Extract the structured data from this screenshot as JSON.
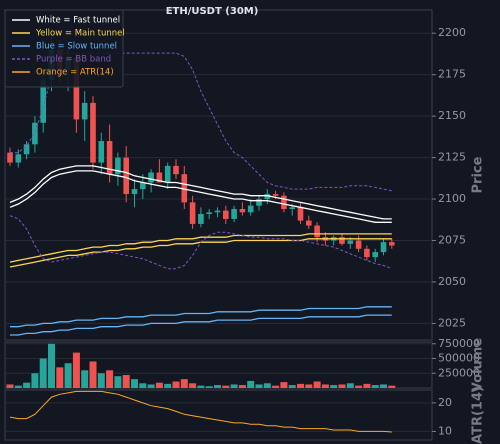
{
  "chart_data": [
    {
      "type": "candlestick",
      "title": "ETH/USDT (30M)",
      "y_label": "Price",
      "up_color": "#26a69a",
      "down_color": "#ef5350",
      "grid": true,
      "legend": "upper left",
      "ylim": [
        2015,
        2214
      ],
      "yticks": [
        2025,
        2050,
        2075,
        2100,
        2125,
        2150,
        2175,
        2200
      ],
      "open": [
        2128,
        2122,
        2127,
        2133,
        2146,
        2172,
        2190,
        2178,
        2185,
        2148,
        2158,
        2122,
        2135,
        2115,
        2125,
        2103,
        2106,
        2110,
        2116,
        2110,
        2120,
        2115,
        2098,
        2085,
        2091,
        2092,
        2093,
        2088,
        2094,
        2092,
        2096,
        2100,
        2103,
        2102,
        2094,
        2095,
        2087,
        2084,
        2077,
        2075,
        2077,
        2073,
        2075,
        2070,
        2065,
        2068,
        2074
      ],
      "high": [
        2131,
        2130,
        2135,
        2150,
        2178,
        2203,
        2196,
        2192,
        2188,
        2165,
        2162,
        2140,
        2145,
        2128,
        2132,
        2112,
        2115,
        2118,
        2124,
        2122,
        2124,
        2120,
        2102,
        2095,
        2094,
        2095,
        2096,
        2096,
        2098,
        2100,
        2102,
        2106,
        2105,
        2104,
        2097,
        2098,
        2090,
        2086,
        2080,
        2078,
        2079,
        2077,
        2078,
        2072,
        2070,
        2076,
        2076
      ],
      "low": [
        2120,
        2119,
        2124,
        2128,
        2140,
        2165,
        2170,
        2165,
        2140,
        2135,
        2118,
        2115,
        2110,
        2108,
        2098,
        2095,
        2100,
        2104,
        2110,
        2106,
        2112,
        2094,
        2082,
        2083,
        2088,
        2089,
        2085,
        2086,
        2090,
        2090,
        2093,
        2097,
        2100,
        2092,
        2090,
        2085,
        2082,
        2074,
        2072,
        2072,
        2072,
        2070,
        2068,
        2063,
        2062,
        2066,
        2070
      ],
      "close": [
        2122,
        2127,
        2133,
        2146,
        2172,
        2190,
        2178,
        2185,
        2148,
        2158,
        2122,
        2135,
        2115,
        2125,
        2103,
        2106,
        2110,
        2116,
        2110,
        2120,
        2115,
        2098,
        2085,
        2091,
        2092,
        2093,
        2088,
        2094,
        2092,
        2096,
        2100,
        2103,
        2102,
        2094,
        2095,
        2087,
        2084,
        2077,
        2075,
        2077,
        2073,
        2075,
        2070,
        2065,
        2068,
        2074,
        2072
      ],
      "series": [
        {
          "name": "White = Fast tunnel",
          "color": "#ffffff",
          "upper": [
            2098,
            2100,
            2103,
            2107,
            2112,
            2116,
            2118,
            2119,
            2120,
            2120,
            2120,
            2119,
            2118,
            2117,
            2116,
            2114,
            2113,
            2112,
            2111,
            2110,
            2110,
            2109,
            2108,
            2107,
            2106,
            2105,
            2104,
            2103,
            2103,
            2102,
            2102,
            2102,
            2101,
            2100,
            2099,
            2098,
            2097,
            2096,
            2095,
            2094,
            2093,
            2092,
            2091,
            2090,
            2089,
            2088,
            2088
          ],
          "lower": [
            2095,
            2097,
            2100,
            2104,
            2109,
            2113,
            2115,
            2116,
            2117,
            2117,
            2117,
            2116,
            2115,
            2114,
            2113,
            2111,
            2110,
            2109,
            2108,
            2107,
            2107,
            2106,
            2105,
            2104,
            2103,
            2102,
            2101,
            2100,
            2100,
            2099,
            2099,
            2099,
            2098,
            2097,
            2096,
            2095,
            2094,
            2093,
            2092,
            2091,
            2090,
            2089,
            2088,
            2087,
            2086,
            2086,
            2086
          ]
        },
        {
          "name": "Yellow = Main tunnel",
          "color": "#ffd54f",
          "upper": [
            2062,
            2063,
            2064,
            2065,
            2066,
            2067,
            2068,
            2069,
            2069,
            2070,
            2071,
            2071,
            2072,
            2072,
            2073,
            2073,
            2074,
            2074,
            2075,
            2075,
            2076,
            2076,
            2076,
            2077,
            2077,
            2077,
            2077,
            2078,
            2078,
            2078,
            2078,
            2078,
            2078,
            2078,
            2078,
            2078,
            2079,
            2079,
            2079,
            2079,
            2079,
            2079,
            2079,
            2079,
            2079,
            2079,
            2079
          ],
          "lower": [
            2059,
            2060,
            2061,
            2062,
            2063,
            2064,
            2065,
            2066,
            2066,
            2067,
            2068,
            2068,
            2069,
            2069,
            2070,
            2070,
            2071,
            2071,
            2072,
            2072,
            2073,
            2073,
            2073,
            2074,
            2074,
            2074,
            2074,
            2075,
            2075,
            2075,
            2075,
            2075,
            2075,
            2075,
            2075,
            2075,
            2076,
            2076,
            2076,
            2076,
            2076,
            2076,
            2076,
            2076,
            2076,
            2076,
            2076
          ]
        },
        {
          "name": "Blue = Slow tunnel",
          "color": "#64b5f6",
          "upper": [
            2023,
            2023,
            2024,
            2024,
            2025,
            2025,
            2026,
            2026,
            2027,
            2027,
            2027,
            2028,
            2028,
            2028,
            2029,
            2029,
            2029,
            2030,
            2030,
            2030,
            2030,
            2031,
            2031,
            2031,
            2031,
            2032,
            2032,
            2032,
            2032,
            2032,
            2033,
            2033,
            2033,
            2033,
            2033,
            2033,
            2034,
            2034,
            2034,
            2034,
            2034,
            2034,
            2034,
            2035,
            2035,
            2035,
            2035
          ],
          "lower": [
            2018,
            2018,
            2019,
            2019,
            2020,
            2020,
            2021,
            2021,
            2022,
            2022,
            2022,
            2023,
            2023,
            2023,
            2024,
            2024,
            2024,
            2025,
            2025,
            2025,
            2025,
            2026,
            2026,
            2026,
            2026,
            2027,
            2027,
            2027,
            2027,
            2027,
            2028,
            2028,
            2028,
            2028,
            2028,
            2028,
            2029,
            2029,
            2029,
            2029,
            2029,
            2029,
            2029,
            2030,
            2030,
            2030,
            2030
          ]
        },
        {
          "name": "Purple = BB band",
          "color": "#7e57c2",
          "dash": true,
          "upper": [
            2128,
            2128,
            2132,
            2140,
            2155,
            2175,
            2188,
            2188,
            2188,
            2188,
            2188,
            2188,
            2188,
            2188,
            2188,
            2188,
            2188,
            2188,
            2188,
            2188,
            2188,
            2186,
            2178,
            2165,
            2155,
            2145,
            2135,
            2128,
            2125,
            2120,
            2115,
            2110,
            2108,
            2107,
            2106,
            2106,
            2106,
            2107,
            2107,
            2107,
            2107,
            2108,
            2108,
            2108,
            2107,
            2106,
            2105
          ],
          "lower": [
            2090,
            2088,
            2082,
            2072,
            2064,
            2062,
            2063,
            2064,
            2065,
            2066,
            2067,
            2068,
            2068,
            2067,
            2066,
            2065,
            2064,
            2062,
            2060,
            2058,
            2058,
            2060,
            2066,
            2074,
            2078,
            2080,
            2080,
            2079,
            2078,
            2077,
            2077,
            2076,
            2076,
            2076,
            2075,
            2075,
            2074,
            2073,
            2072,
            2071,
            2069,
            2067,
            2065,
            2063,
            2061,
            2060,
            2058
          ]
        }
      ]
    },
    {
      "type": "bar",
      "y_label": "Volume",
      "up_color": "#26a69a",
      "down_color": "#ef5350",
      "grid": true,
      "ylim": [
        0,
        780000
      ],
      "yticks": [
        250000,
        500000,
        750000
      ],
      "values": [
        60000,
        40000,
        90000,
        250000,
        500000,
        750000,
        350000,
        420000,
        600000,
        300000,
        450000,
        250000,
        300000,
        200000,
        220000,
        150000,
        80000,
        60000,
        90000,
        70000,
        110000,
        150000,
        80000,
        40000,
        30000,
        50000,
        40000,
        60000,
        50000,
        120000,
        60000,
        80000,
        40000,
        100000,
        50000,
        70000,
        60000,
        110000,
        60000,
        50000,
        60000,
        80000,
        40000,
        70000,
        50000,
        60000,
        40000
      ]
    },
    {
      "type": "line",
      "y_label": "ATR(14)",
      "grid": true,
      "ylim": [
        7,
        24.5
      ],
      "yticks": [
        10,
        20
      ],
      "series": [
        {
          "name": "Orange = ATR(14)",
          "color": "#ffa726",
          "values": [
            15,
            14.5,
            14.5,
            16,
            19,
            22,
            23,
            23.5,
            24,
            24,
            24,
            24,
            23.5,
            23,
            22,
            21,
            20,
            19,
            18.5,
            18,
            17,
            16,
            15.5,
            15,
            14.5,
            14,
            13.5,
            13,
            13,
            12.5,
            12.5,
            12,
            12,
            11.5,
            11.5,
            11,
            11,
            11,
            11,
            10.5,
            10.5,
            10.5,
            10,
            10,
            10,
            10,
            9.8
          ]
        }
      ]
    }
  ]
}
